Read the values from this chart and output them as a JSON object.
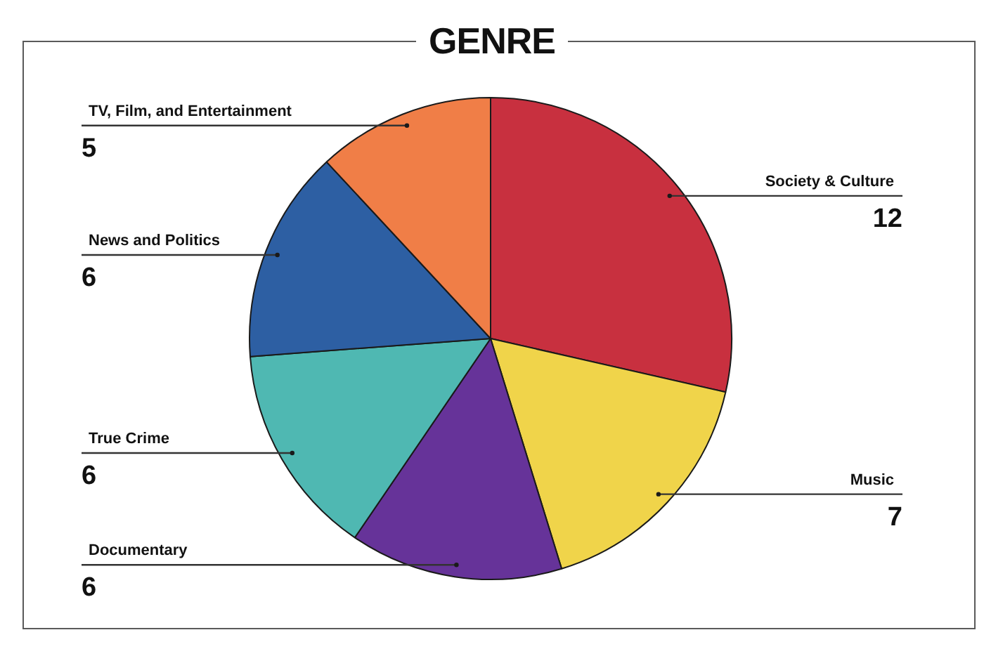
{
  "chart_data": {
    "type": "pie",
    "title": "GENRE",
    "categories": [
      "Society & Culture",
      "Music",
      "Documentary",
      "True Crime",
      "News and Politics",
      "TV, Film, and Entertainment"
    ],
    "values": [
      12,
      7,
      6,
      6,
      6,
      5
    ],
    "colors": [
      "#c8303f",
      "#f0d44a",
      "#663399",
      "#4fb8b2",
      "#2d5fa3",
      "#f07e47"
    ],
    "data_labels": true
  }
}
